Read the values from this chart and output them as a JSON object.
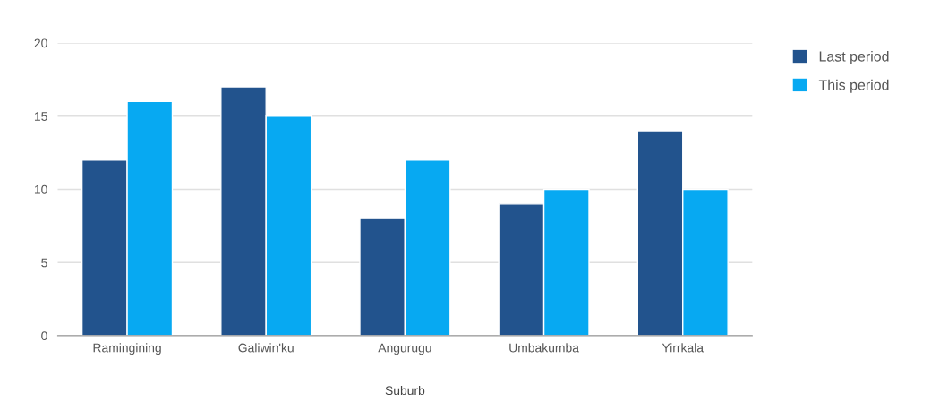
{
  "chart_data": {
    "type": "bar",
    "xlabel": "Suburb",
    "categories": [
      "Ramingining",
      "Galiwin'ku",
      "Angurugu",
      "Umbakumba",
      "Yirrkala"
    ],
    "series": [
      {
        "name": "Last period",
        "color": "#22538d",
        "values": [
          12,
          17,
          8,
          9,
          14
        ]
      },
      {
        "name": "This period",
        "color": "#07a9f2",
        "values": [
          16,
          15,
          12,
          10,
          10
        ]
      }
    ],
    "ylim": [
      0,
      20
    ],
    "yticks": [
      0,
      5,
      10,
      15,
      20
    ],
    "grid": "y",
    "legend": "top right"
  }
}
